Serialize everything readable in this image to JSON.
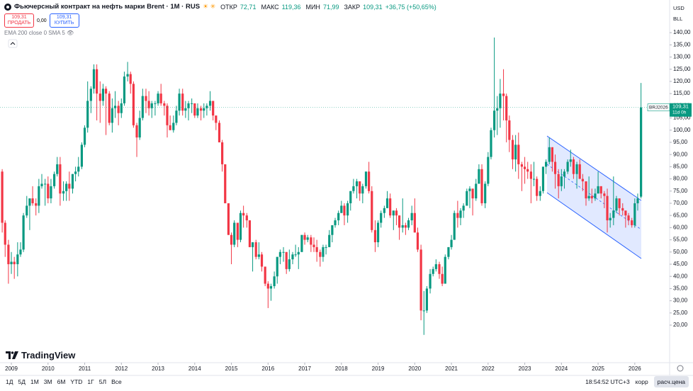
{
  "header": {
    "title": "Фьючерсный контракт на нефть марки Brent · 1М · RUS",
    "open_label": "ОТКР",
    "open": "72,71",
    "high_label": "МАКС",
    "high": "119,36",
    "low_label": "МИН",
    "low": "71,99",
    "close_label": "ЗАКР",
    "close": "109,31",
    "change": "+36,75 (+50,65%)",
    "sell_price": "109,31",
    "sell": "ПРОДАТЬ",
    "spread": "0,00",
    "buy_price": "109,31",
    "buy": "КУПИТЬ",
    "indicators": "EMA 200 close 0 SMA 5",
    "currency": "USD",
    "unit": "BLL"
  },
  "chart_data": {
    "type": "candlestick",
    "symbol_tag": "BRJ2026",
    "countdown": "11d 0h",
    "up_color": "#089981",
    "down_color": "#f23645",
    "xlim": [
      2008.69,
      2026.95
    ],
    "xticks": [
      2009,
      2010,
      2011,
      2012,
      2013,
      2014,
      2015,
      2016,
      2017,
      2018,
      2019,
      2020,
      2021,
      2022,
      2023,
      2024,
      2025,
      2026
    ],
    "ylim": [
      4.6,
      153.4
    ],
    "yticks": [
      {
        "value": 20,
        "label": "20,00"
      },
      {
        "value": 25,
        "label": "25,00"
      },
      {
        "value": 30,
        "label": "30,00"
      },
      {
        "value": 35,
        "label": "35,00"
      },
      {
        "value": 40,
        "label": "40,00"
      },
      {
        "value": 45,
        "label": "45,00"
      },
      {
        "value": 50,
        "label": "50,00"
      },
      {
        "value": 55,
        "label": "55,00"
      },
      {
        "value": 60,
        "label": "60,00"
      },
      {
        "value": 65,
        "label": "65,00"
      },
      {
        "value": 70,
        "label": "70,00"
      },
      {
        "value": 75,
        "label": "75,00"
      },
      {
        "value": 80,
        "label": "80,00"
      },
      {
        "value": 85,
        "label": "85,00"
      },
      {
        "value": 90,
        "label": "90,00"
      },
      {
        "value": 95,
        "label": "95,00"
      },
      {
        "value": 100,
        "label": "100,00"
      },
      {
        "value": 105,
        "label": "105,00"
      },
      {
        "value": 110,
        "label": "110,00"
      },
      {
        "value": 115,
        "label": "115,00"
      },
      {
        "value": 120,
        "label": "120,00"
      },
      {
        "value": 125,
        "label": "125,00"
      },
      {
        "value": 130,
        "label": "130,00"
      },
      {
        "value": 135,
        "label": "135,00"
      },
      {
        "value": 140,
        "label": "140,00"
      }
    ],
    "x": [
      2008.75,
      2008.83,
      2008.92,
      2009,
      2009.08,
      2009.17,
      2009.25,
      2009.33,
      2009.42,
      2009.5,
      2009.58,
      2009.67,
      2009.75,
      2009.83,
      2009.92,
      2010,
      2010.08,
      2010.17,
      2010.25,
      2010.33,
      2010.42,
      2010.5,
      2010.58,
      2010.67,
      2010.75,
      2010.83,
      2010.92,
      2011,
      2011.08,
      2011.17,
      2011.25,
      2011.33,
      2011.42,
      2011.5,
      2011.58,
      2011.67,
      2011.75,
      2011.83,
      2011.92,
      2012,
      2012.08,
      2012.17,
      2012.25,
      2012.33,
      2012.42,
      2012.5,
      2012.58,
      2012.67,
      2012.75,
      2012.83,
      2012.92,
      2013,
      2013.08,
      2013.17,
      2013.25,
      2013.33,
      2013.42,
      2013.5,
      2013.58,
      2013.67,
      2013.75,
      2013.83,
      2013.92,
      2014,
      2014.08,
      2014.17,
      2014.25,
      2014.33,
      2014.42,
      2014.5,
      2014.58,
      2014.67,
      2014.75,
      2014.83,
      2014.92,
      2015,
      2015.08,
      2015.17,
      2015.25,
      2015.33,
      2015.42,
      2015.5,
      2015.58,
      2015.67,
      2015.75,
      2015.83,
      2015.92,
      2016,
      2016.08,
      2016.17,
      2016.25,
      2016.33,
      2016.42,
      2016.5,
      2016.58,
      2016.67,
      2016.75,
      2016.83,
      2016.92,
      2017,
      2017.08,
      2017.17,
      2017.25,
      2017.33,
      2017.42,
      2017.5,
      2017.58,
      2017.67,
      2017.75,
      2017.83,
      2017.92,
      2018,
      2018.08,
      2018.17,
      2018.25,
      2018.33,
      2018.42,
      2018.5,
      2018.58,
      2018.67,
      2018.75,
      2018.83,
      2018.92,
      2019,
      2019.08,
      2019.17,
      2019.25,
      2019.33,
      2019.42,
      2019.5,
      2019.58,
      2019.67,
      2019.75,
      2019.83,
      2019.92,
      2020,
      2020.08,
      2020.17,
      2020.25,
      2020.33,
      2020.42,
      2020.5,
      2020.58,
      2020.67,
      2020.75,
      2020.83,
      2020.92,
      2021,
      2021.08,
      2021.17,
      2021.25,
      2021.33,
      2021.42,
      2021.5,
      2021.58,
      2021.67,
      2021.75,
      2021.83,
      2021.92,
      2022,
      2022.08,
      2022.17,
      2022.25,
      2022.33,
      2022.42,
      2022.5,
      2022.58,
      2022.67,
      2022.75,
      2022.83,
      2022.92,
      2023,
      2023.08,
      2023.17,
      2023.25,
      2023.33,
      2023.42,
      2023.5,
      2023.58,
      2023.67,
      2023.75,
      2023.83,
      2023.92,
      2024,
      2024.08,
      2024.17,
      2024.25,
      2024.33,
      2024.42,
      2024.5,
      2024.58,
      2024.67,
      2024.75,
      2024.83,
      2024.92,
      2025,
      2025.08,
      2025.17,
      2025.25,
      2025.33,
      2025.42,
      2025.5,
      2025.58,
      2025.67,
      2025.75,
      2025.83,
      2025.92,
      2026,
      2026.08,
      2026.17
    ],
    "ohlc": [
      [
        83,
        84,
        58,
        62
      ],
      [
        62,
        63,
        48,
        53
      ],
      [
        53,
        55,
        37,
        45
      ],
      [
        45,
        50,
        41,
        46
      ],
      [
        46,
        48,
        39,
        45
      ],
      [
        45,
        54,
        40,
        49
      ],
      [
        49,
        54,
        48,
        51
      ],
      [
        51,
        66,
        50,
        65
      ],
      [
        65,
        73,
        64,
        69
      ],
      [
        69,
        72,
        59,
        72
      ],
      [
        72,
        77,
        69,
        70
      ],
      [
        70,
        72,
        65,
        69
      ],
      [
        69,
        80,
        66,
        77
      ],
      [
        77,
        82,
        76,
        78
      ],
      [
        78,
        80,
        69,
        78
      ],
      [
        78,
        81,
        70,
        72
      ],
      [
        72,
        80,
        70,
        77
      ],
      [
        77,
        83,
        76,
        82
      ],
      [
        82,
        89,
        81,
        86
      ],
      [
        86,
        89,
        69,
        74
      ],
      [
        74,
        79,
        71,
        75
      ],
      [
        75,
        79,
        71,
        78
      ],
      [
        78,
        83,
        71,
        76
      ],
      [
        76,
        82,
        74,
        82
      ],
      [
        82,
        85,
        79,
        83
      ],
      [
        83,
        89,
        81,
        85
      ],
      [
        85,
        95,
        84,
        94
      ],
      [
        94,
        102,
        93,
        101
      ],
      [
        101,
        120,
        99,
        112
      ],
      [
        112,
        118,
        107,
        117
      ],
      [
        117,
        127,
        115,
        125
      ],
      [
        125,
        127,
        104,
        115
      ],
      [
        115,
        120,
        103,
        112
      ],
      [
        112,
        119,
        110,
        117
      ],
      [
        117,
        118,
        98,
        115
      ],
      [
        115,
        116,
        102,
        103
      ],
      [
        103,
        113,
        99,
        109
      ],
      [
        109,
        116,
        105,
        110
      ],
      [
        110,
        112,
        102,
        107
      ],
      [
        107,
        113,
        105,
        111
      ],
      [
        111,
        124,
        110,
        122
      ],
      [
        122,
        128,
        120,
        123
      ],
      [
        123,
        124,
        115,
        119
      ],
      [
        119,
        120,
        101,
        102
      ],
      [
        102,
        103,
        89,
        97
      ],
      [
        97,
        108,
        96,
        105
      ],
      [
        105,
        117,
        104,
        114
      ],
      [
        114,
        117,
        107,
        112
      ],
      [
        112,
        116,
        106,
        109
      ],
      [
        109,
        112,
        105,
        111
      ],
      [
        111,
        112,
        106,
        111
      ],
      [
        111,
        116,
        110,
        115
      ],
      [
        115,
        119,
        110,
        111
      ],
      [
        111,
        112,
        106,
        110
      ],
      [
        110,
        111,
        97,
        102
      ],
      [
        102,
        106,
        100,
        100
      ],
      [
        100,
        106,
        99,
        103
      ],
      [
        103,
        110,
        102,
        108
      ],
      [
        108,
        117,
        106,
        115
      ],
      [
        115,
        117,
        106,
        108
      ],
      [
        108,
        112,
        105,
        109
      ],
      [
        109,
        112,
        104,
        111
      ],
      [
        111,
        113,
        107,
        111
      ],
      [
        111,
        111,
        105,
        106
      ],
      [
        106,
        111,
        105,
        109
      ],
      [
        109,
        110,
        104,
        108
      ],
      [
        108,
        111,
        105,
        109
      ],
      [
        109,
        111,
        106,
        110
      ],
      [
        110,
        116,
        108,
        112
      ],
      [
        112,
        112,
        104,
        106
      ],
      [
        106,
        106,
        100,
        103
      ],
      [
        103,
        104,
        95,
        95
      ],
      [
        95,
        96,
        83,
        86
      ],
      [
        86,
        86,
        70,
        70
      ],
      [
        70,
        70,
        57,
        57
      ],
      [
        57,
        58,
        45,
        53
      ],
      [
        53,
        63,
        52,
        62
      ],
      [
        62,
        62,
        52,
        55
      ],
      [
        55,
        67,
        54,
        66
      ],
      [
        66,
        69,
        60,
        65
      ],
      [
        65,
        66,
        60,
        63
      ],
      [
        63,
        63,
        52,
        52
      ],
      [
        52,
        54,
        42,
        54
      ],
      [
        54,
        55,
        47,
        48
      ],
      [
        48,
        54,
        47,
        49
      ],
      [
        49,
        50,
        42,
        44
      ],
      [
        44,
        44,
        36,
        37
      ],
      [
        37,
        38,
        27,
        35
      ],
      [
        35,
        37,
        30,
        36
      ],
      [
        36,
        42,
        35,
        40
      ],
      [
        40,
        48,
        37,
        48
      ],
      [
        48,
        51,
        45,
        50
      ],
      [
        50,
        52,
        46,
        50
      ],
      [
        50,
        50,
        41,
        43
      ],
      [
        43,
        51,
        42,
        47
      ],
      [
        47,
        50,
        45,
        49
      ],
      [
        49,
        53,
        48,
        49
      ],
      [
        49,
        52,
        43,
        50
      ],
      [
        50,
        57,
        50,
        57
      ],
      [
        57,
        58,
        53,
        55
      ],
      [
        55,
        57,
        54,
        56
      ],
      [
        56,
        57,
        50,
        53
      ],
      [
        53,
        56,
        50,
        52
      ],
      [
        52,
        55,
        46,
        50
      ],
      [
        50,
        51,
        44,
        48
      ],
      [
        48,
        53,
        46,
        52
      ],
      [
        52,
        53,
        49,
        52
      ],
      [
        52,
        59,
        52,
        57
      ],
      [
        57,
        61,
        54,
        61
      ],
      [
        61,
        64,
        60,
        63
      ],
      [
        63,
        67,
        61,
        66
      ],
      [
        66,
        71,
        66,
        69
      ],
      [
        69,
        70,
        61,
        65
      ],
      [
        65,
        71,
        62,
        70
      ],
      [
        70,
        75,
        67,
        75
      ],
      [
        75,
        80,
        74,
        77
      ],
      [
        77,
        80,
        72,
        79
      ],
      [
        79,
        79,
        71,
        74
      ],
      [
        74,
        78,
        70,
        77
      ],
      [
        77,
        83,
        76,
        83
      ],
      [
        83,
        87,
        74,
        75
      ],
      [
        75,
        77,
        58,
        59
      ],
      [
        59,
        63,
        50,
        54
      ],
      [
        54,
        63,
        52,
        62
      ],
      [
        62,
        67,
        60,
        66
      ],
      [
        66,
        69,
        64,
        68
      ],
      [
        68,
        75,
        68,
        72
      ],
      [
        72,
        74,
        64,
        65
      ],
      [
        65,
        67,
        59,
        67
      ],
      [
        67,
        68,
        61,
        65
      ],
      [
        65,
        65,
        55,
        60
      ],
      [
        60,
        72,
        58,
        61
      ],
      [
        61,
        62,
        57,
        60
      ],
      [
        60,
        64,
        59,
        63
      ],
      [
        63,
        69,
        61,
        66
      ],
      [
        66,
        72,
        58,
        58
      ],
      [
        58,
        60,
        50,
        51
      ],
      [
        51,
        53,
        22,
        26
      ],
      [
        26,
        34,
        16,
        26
      ],
      [
        26,
        36,
        25,
        35
      ],
      [
        35,
        43,
        33,
        41
      ],
      [
        41,
        44,
        40,
        43
      ],
      [
        43,
        47,
        42,
        45
      ],
      [
        45,
        46,
        39,
        41
      ],
      [
        41,
        44,
        36,
        37
      ],
      [
        37,
        49,
        37,
        48
      ],
      [
        48,
        52,
        47,
        52
      ],
      [
        52,
        57,
        51,
        55
      ],
      [
        55,
        67,
        55,
        66
      ],
      [
        66,
        71,
        60,
        64
      ],
      [
        64,
        68,
        61,
        67
      ],
      [
        67,
        70,
        64,
        69
      ],
      [
        69,
        76,
        69,
        75
      ],
      [
        75,
        77,
        68,
        76
      ],
      [
        76,
        76,
        65,
        72
      ],
      [
        72,
        80,
        71,
        78
      ],
      [
        78,
        86,
        78,
        84
      ],
      [
        84,
        86,
        69,
        70
      ],
      [
        70,
        79,
        68,
        78
      ],
      [
        78,
        91,
        77,
        89
      ],
      [
        89,
        101,
        88,
        100
      ],
      [
        100,
        138,
        97,
        108
      ],
      [
        108,
        114,
        98,
        109
      ],
      [
        109,
        121,
        101,
        115
      ],
      [
        115,
        125,
        104,
        114
      ],
      [
        114,
        115,
        95,
        104
      ],
      [
        104,
        106,
        91,
        96
      ],
      [
        96,
        98,
        84,
        88
      ],
      [
        88,
        98,
        83,
        94
      ],
      [
        94,
        99,
        80,
        86
      ],
      [
        86,
        87,
        75,
        85
      ],
      [
        85,
        89,
        78,
        84
      ],
      [
        84,
        87,
        80,
        83
      ],
      [
        83,
        86,
        70,
        80
      ],
      [
        80,
        87,
        77,
        80
      ],
      [
        80,
        81,
        71,
        73
      ],
      [
        73,
        77,
        71,
        75
      ],
      [
        75,
        85,
        74,
        85
      ],
      [
        85,
        88,
        82,
        87
      ],
      [
        87,
        97,
        86,
        93
      ],
      [
        93,
        93,
        83,
        87
      ],
      [
        87,
        90,
        76,
        82
      ],
      [
        82,
        84,
        72,
        77
      ],
      [
        77,
        84,
        75,
        81
      ],
      [
        81,
        84,
        76,
        83
      ],
      [
        83,
        88,
        82,
        87
      ],
      [
        87,
        92,
        85,
        88
      ],
      [
        88,
        89,
        80,
        82
      ],
      [
        82,
        87,
        76,
        86
      ],
      [
        86,
        88,
        80,
        80
      ],
      [
        80,
        82,
        75,
        79
      ],
      [
        79,
        79,
        69,
        72
      ],
      [
        72,
        81,
        71,
        73
      ],
      [
        73,
        76,
        70,
        72
      ],
      [
        72,
        76,
        71,
        74
      ],
      [
        74,
        83,
        74,
        77
      ],
      [
        77,
        77,
        72,
        74
      ],
      [
        74,
        75,
        68,
        73
      ],
      [
        73,
        76,
        58,
        63
      ],
      [
        63,
        66,
        60,
        64
      ],
      [
        64,
        81,
        61,
        67
      ],
      [
        67,
        73,
        66,
        72
      ],
      [
        72,
        72,
        65,
        68
      ],
      [
        68,
        70,
        65,
        67
      ],
      [
        67,
        67,
        60,
        65
      ],
      [
        65,
        66,
        61,
        63
      ],
      [
        63,
        64,
        60,
        61
      ],
      [
        61,
        72,
        60,
        70
      ],
      [
        70,
        74,
        67,
        72
      ],
      [
        72.71,
        119.36,
        71.99,
        109.31
      ]
    ]
  },
  "footer": {
    "logo": "TradingView",
    "timeframes": [
      "1Д",
      "5Д",
      "1М",
      "3М",
      "6М",
      "YTD",
      "1Г",
      "5Л",
      "Все"
    ],
    "time": "18:54:52 UTC+3",
    "adjust": "корр",
    "settlement": "расч.цена"
  }
}
